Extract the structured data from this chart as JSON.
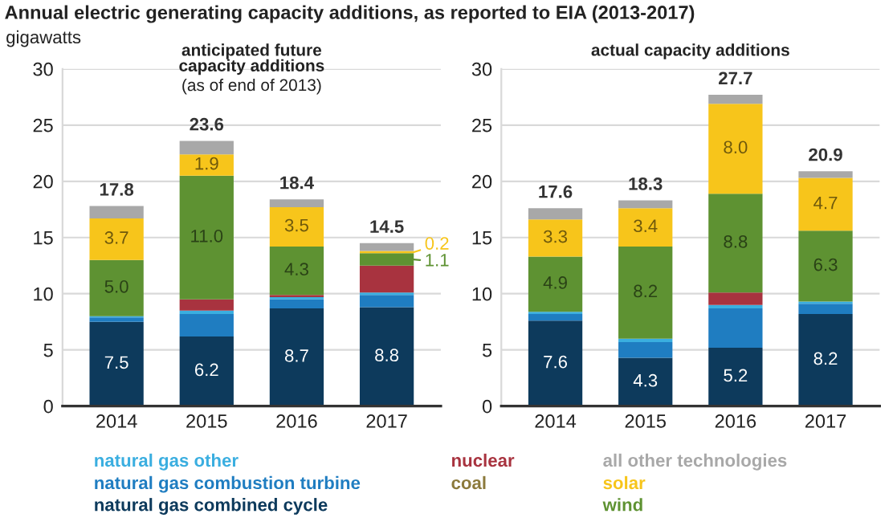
{
  "chart_data": [
    {
      "type": "bar",
      "stacked": true,
      "title": "Annual electric generating capacity additions, as reported to EIA (2013-2017)",
      "subtitle": "anticipated future\ncapacity additions",
      "annotations": [
        "(as of end of 2013)"
      ],
      "ylabel": "gigawatts",
      "categories": [
        "2014",
        "2015",
        "2016",
        "2017"
      ],
      "ylim": [
        0,
        30
      ],
      "yticks": [
        0,
        5,
        10,
        15,
        20,
        25,
        30
      ],
      "grid": "y",
      "legend": "bottom",
      "series": [
        {
          "name": "natural gas combined cycle",
          "color": "#0d3a5c",
          "values": [
            7.5,
            6.2,
            8.7,
            8.8
          ],
          "value_labels": [
            "7.5",
            "6.2",
            "8.7",
            "8.8"
          ]
        },
        {
          "name": "natural gas combustion turbine",
          "color": "#1f7dc1",
          "values": [
            0.4,
            2.0,
            0.8,
            1.1
          ]
        },
        {
          "name": "natural gas other",
          "color": "#3aaee0",
          "values": [
            0.1,
            0.3,
            0.2,
            0.2
          ]
        },
        {
          "name": "coal",
          "color": "#8c7a3c",
          "values": [
            0,
            0,
            0,
            0
          ]
        },
        {
          "name": "nuclear",
          "color": "#a8333f",
          "values": [
            0,
            1.0,
            0.2,
            2.4
          ]
        },
        {
          "name": "wind",
          "color": "#5e9232",
          "values": [
            5.0,
            11.0,
            4.3,
            1.1
          ],
          "value_labels": [
            "5.0",
            "11.0",
            "4.3",
            "1.1"
          ]
        },
        {
          "name": "solar",
          "color": "#f7c51b",
          "values": [
            3.7,
            1.9,
            3.5,
            0.2
          ],
          "value_labels": [
            "3.7",
            "1.9",
            "3.5",
            "0.2"
          ]
        },
        {
          "name": "all other technologies",
          "color": "#a8a8a8",
          "values": [
            1.1,
            1.2,
            0.7,
            0.7
          ]
        }
      ],
      "totals": [
        "17.8",
        "23.6",
        "18.4",
        "14.5"
      ]
    },
    {
      "type": "bar",
      "stacked": true,
      "title": "actual capacity additions",
      "categories": [
        "2014",
        "2015",
        "2016",
        "2017"
      ],
      "ylim": [
        0,
        30
      ],
      "yticks": [
        0,
        5,
        10,
        15,
        20,
        25,
        30
      ],
      "grid": "y",
      "series": [
        {
          "color": "#0d3a5c",
          "values": [
            7.6,
            4.3,
            5.2,
            8.2
          ],
          "value_labels": [
            "7.6",
            "4.3",
            "5.2",
            "8.2"
          ]
        },
        {
          "color": "#1f7dc1",
          "values": [
            0.6,
            1.4,
            3.5,
            0.9
          ]
        },
        {
          "color": "#3aaee0",
          "values": [
            0.2,
            0.3,
            0.3,
            0.2
          ]
        },
        {
          "color": "#8c7a3c",
          "values": [
            0,
            0,
            0,
            0
          ]
        },
        {
          "color": "#a8333f",
          "values": [
            0,
            0,
            1.1,
            0
          ]
        },
        {
          "color": "#5e9232",
          "values": [
            4.9,
            8.2,
            8.8,
            6.3
          ],
          "value_labels": [
            "4.9",
            "8.2",
            "8.8",
            "6.3"
          ]
        },
        {
          "color": "#f7c51b",
          "values": [
            3.3,
            3.4,
            8.0,
            4.7
          ],
          "value_labels": [
            "3.3",
            "3.4",
            "8.0",
            "4.7"
          ]
        },
        {
          "color": "#a8a8a8",
          "values": [
            1.0,
            0.7,
            0.8,
            0.6
          ]
        }
      ],
      "totals": [
        "17.6",
        "18.3",
        "27.7",
        "20.9"
      ]
    }
  ]
}
